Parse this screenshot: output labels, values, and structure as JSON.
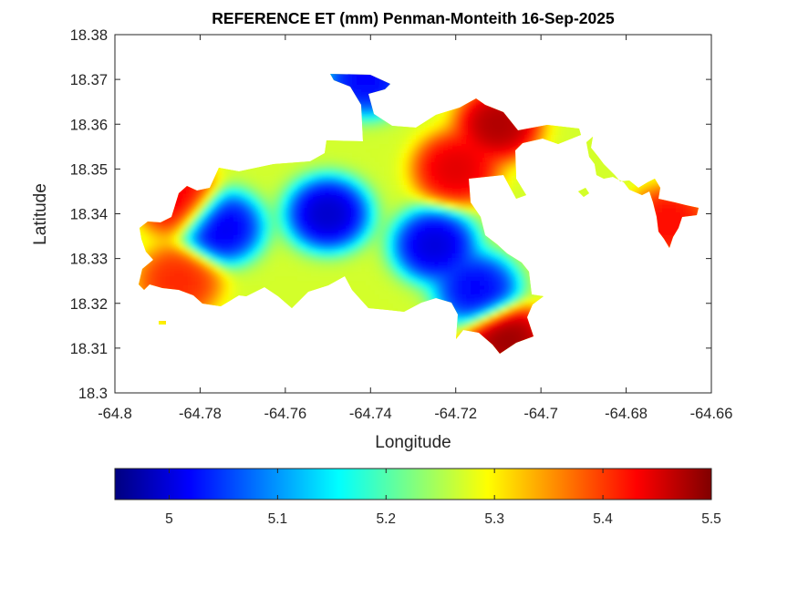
{
  "chart_data": {
    "type": "heatmap",
    "title": "REFERENCE ET (mm) Penman-Monteith 16-Sep-2025",
    "xlabel": "Longitude",
    "ylabel": "Latitude",
    "xlim": [
      -64.8,
      -64.66
    ],
    "ylim": [
      18.3,
      18.38
    ],
    "x_ticks": [
      -64.8,
      -64.78,
      -64.76,
      -64.74,
      -64.72,
      -64.7,
      -64.68,
      -64.66
    ],
    "x_tick_labels": [
      "-64.8",
      "-64.78",
      "-64.76",
      "-64.74",
      "-64.72",
      "-64.7",
      "-64.68",
      "-64.66"
    ],
    "y_ticks": [
      18.3,
      18.31,
      18.32,
      18.33,
      18.34,
      18.35,
      18.36,
      18.37,
      18.38
    ],
    "y_tick_labels": [
      "18.3",
      "18.31",
      "18.32",
      "18.33",
      "18.34",
      "18.35",
      "18.36",
      "18.37",
      "18.38"
    ],
    "grid": false,
    "colormap": "jet",
    "colorbar": {
      "orientation": "horizontal",
      "location": "below",
      "range": [
        4.95,
        5.5
      ],
      "ticks": [
        5.0,
        5.1,
        5.2,
        5.3,
        5.4,
        5.5
      ],
      "tick_labels": [
        "5",
        "5.1",
        "5.2",
        "5.3",
        "5.4",
        "5.5"
      ]
    },
    "field": {
      "min_value": 4.95,
      "max_value": 5.5,
      "regions": [
        {
          "name": "low-ET central ridge",
          "lon": -64.75,
          "lat": 18.34,
          "value": 4.97
        },
        {
          "name": "low-ET west ridge",
          "lon": -64.775,
          "lat": 18.337,
          "value": 4.99
        },
        {
          "name": "low-ET southeast ridge",
          "lon": -64.725,
          "lat": 18.333,
          "value": 4.98
        },
        {
          "name": "low-ET south slope",
          "lon": -64.715,
          "lat": 18.323,
          "value": 5.0
        },
        {
          "name": "high-ET west tip",
          "lon": -64.785,
          "lat": 18.343,
          "value": 5.45
        },
        {
          "name": "high-ET southwest coast",
          "lon": -64.785,
          "lat": 18.325,
          "value": 5.42
        },
        {
          "name": "high-ET northeast valley",
          "lon": -64.72,
          "lat": 18.35,
          "value": 5.46
        },
        {
          "name": "high-ET northeast peak",
          "lon": -64.71,
          "lat": 18.36,
          "value": 5.49
        },
        {
          "name": "high-ET southeast coast",
          "lon": -64.708,
          "lat": 18.312,
          "value": 5.5
        },
        {
          "name": "high-ET east cays",
          "lon": -64.67,
          "lat": 18.338,
          "value": 5.44
        },
        {
          "name": "low-ET north point",
          "lon": -64.741,
          "lat": 18.37,
          "value": 5.0
        }
      ]
    }
  }
}
